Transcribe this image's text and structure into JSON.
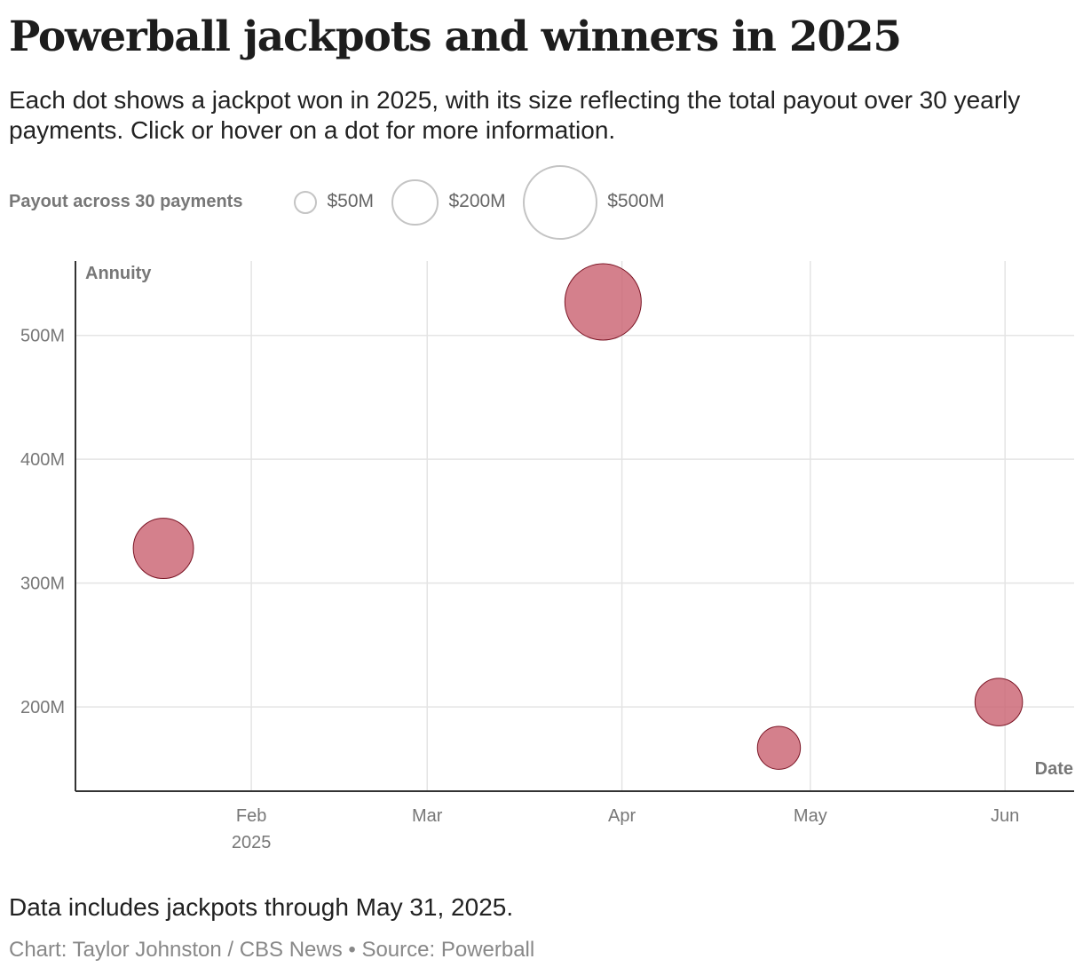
{
  "header": {
    "title": "Powerball jackpots and winners in 2025",
    "subtitle": "Each dot shows a jackpot won in 2025, with its size reflecting the total payout over 30 yearly payments. Click or hover on a dot for more information."
  },
  "legend": {
    "title": "Payout across 30 payments",
    "items": [
      {
        "label": "$50M",
        "payout_millions": 50
      },
      {
        "label": "$200M",
        "payout_millions": 200
      },
      {
        "label": "$500M",
        "payout_millions": 500
      }
    ]
  },
  "chart_data": {
    "type": "scatter",
    "title": "Powerball jackpots and winners in 2025",
    "ylabel": "Annuity",
    "xlabel": "Date",
    "x_scale": "time",
    "xlim": [
      "2025-01-04",
      "2025-06-12"
    ],
    "ylim": [
      132,
      560
    ],
    "y_ticks": [
      200,
      300,
      400,
      500
    ],
    "y_tick_labels": [
      "200M",
      "300M",
      "400M",
      "500M"
    ],
    "x_ticks": [
      "2025-02-01",
      "2025-03-01",
      "2025-04-01",
      "2025-05-01",
      "2025-06-01"
    ],
    "x_tick_labels": [
      "Feb",
      "Mar",
      "Apr",
      "May",
      "Jun"
    ],
    "x_tick_sublabel": {
      "tick": "2025-02-01",
      "text": "2025"
    },
    "grid": true,
    "size_encoding": "Payout across 30 payments",
    "points": [
      {
        "date": "2025-01-18",
        "annuity_millions": 328,
        "payout_millions": 328
      },
      {
        "date": "2025-03-29",
        "annuity_millions": 527,
        "payout_millions": 527
      },
      {
        "date": "2025-04-26",
        "annuity_millions": 167,
        "payout_millions": 167
      },
      {
        "date": "2025-05-31",
        "annuity_millions": 204,
        "payout_millions": 204
      }
    ],
    "colors": {
      "dot_fill": "#c9606f",
      "dot_stroke": "#7a1424",
      "grid": "#e4e4e4",
      "axis": "#333333",
      "tick_label": "#777777"
    }
  },
  "footer": {
    "note": "Data includes jackpots through May 31, 2025.",
    "credit": "Chart: Taylor Johnston / CBS News • Source: Powerball"
  }
}
